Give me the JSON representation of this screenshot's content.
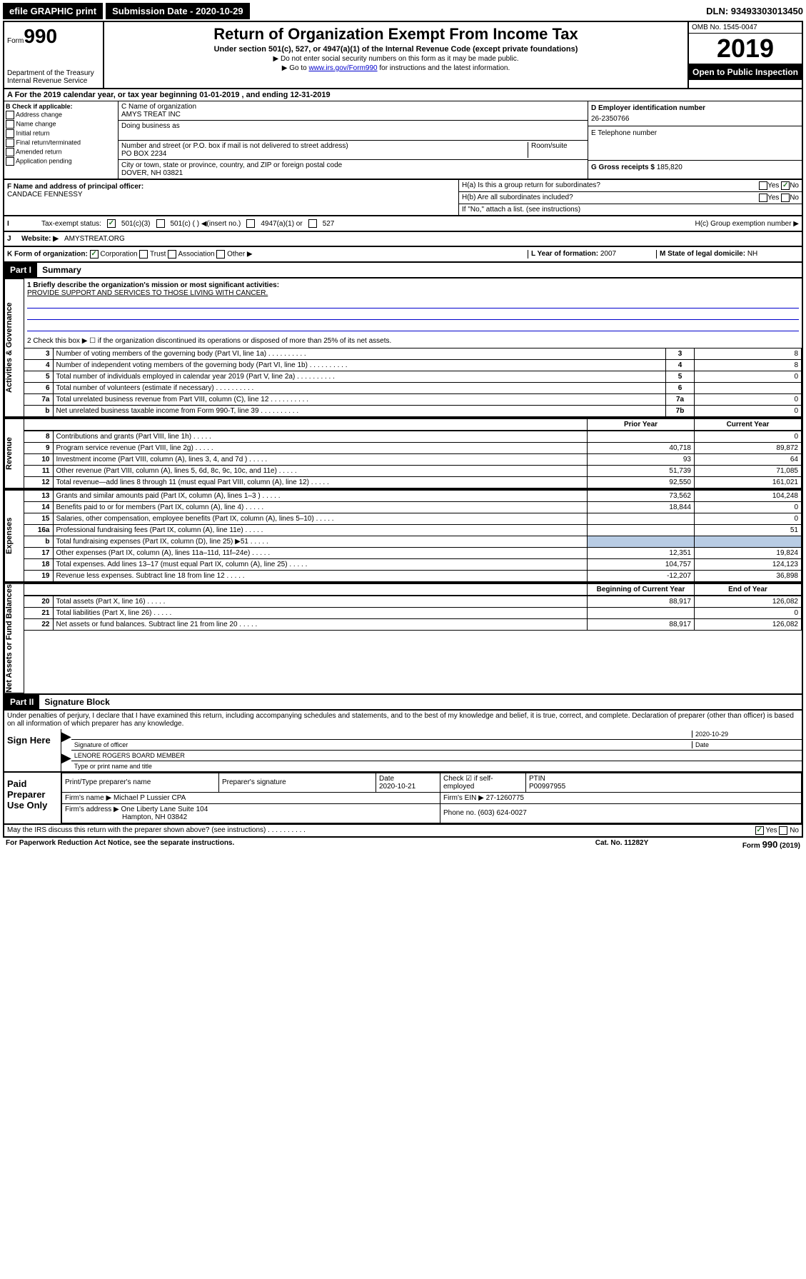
{
  "topbar": {
    "efile": "efile GRAPHIC print",
    "submission": "Submission Date - 2020-10-29",
    "dln": "DLN: 93493303013450"
  },
  "header": {
    "form_label": "Form",
    "form_number": "990",
    "dept": "Department of the Treasury",
    "irs": "Internal Revenue Service",
    "title": "Return of Organization Exempt From Income Tax",
    "subtitle": "Under section 501(c), 527, or 4947(a)(1) of the Internal Revenue Code (except private foundations)",
    "note1": "▶ Do not enter social security numbers on this form as it may be made public.",
    "note2_prefix": "▶ Go to ",
    "note2_link": "www.irs.gov/Form990",
    "note2_suffix": " for instructions and the latest information.",
    "omb": "OMB No. 1545-0047",
    "year": "2019",
    "open": "Open to Public Inspection"
  },
  "rowA": "For the 2019 calendar year, or tax year beginning 01-01-2019    , and ending 12-31-2019",
  "checkB": {
    "label": "B Check if applicable:",
    "items": [
      "Address change",
      "Name change",
      "Initial return",
      "Final return/terminated",
      "Amended return",
      "Application pending"
    ]
  },
  "colC": {
    "name_label": "C Name of organization",
    "name": "AMYS TREAT INC",
    "dba_label": "Doing business as",
    "addr_label": "Number and street (or P.O. box if mail is not delivered to street address)",
    "room_label": "Room/suite",
    "addr": "PO BOX 2234",
    "city_label": "City or town, state or province, country, and ZIP or foreign postal code",
    "city": "DOVER, NH  03821"
  },
  "colD": {
    "ein_label": "D Employer identification number",
    "ein": "26-2350766",
    "phone_label": "E Telephone number",
    "gross_label": "G Gross receipts $ ",
    "gross": "185,820"
  },
  "rowF": {
    "label": "F  Name and address of principal officer:",
    "name": "CANDACE FENNESSY"
  },
  "rowH": {
    "ha": "H(a)  Is this a group return for subordinates?",
    "hb": "H(b)  Are all subordinates included?",
    "hb_note": "If \"No,\" attach a list. (see instructions)",
    "hc": "H(c)  Group exemption number ▶",
    "yes": "Yes",
    "no": "No"
  },
  "rowI": {
    "label": "Tax-exempt status:",
    "opt1": "501(c)(3)",
    "opt2": "501(c) (  ) ◀(insert no.)",
    "opt3": "4947(a)(1) or",
    "opt4": "527"
  },
  "rowJ": {
    "label": "Website: ▶",
    "value": "AMYSTREAT.ORG"
  },
  "rowK": {
    "label": "K Form of organization:",
    "corp": "Corporation",
    "trust": "Trust",
    "assoc": "Association",
    "other": "Other ▶",
    "l_label": "L Year of formation: ",
    "l_val": "2007",
    "m_label": "M State of legal domicile: ",
    "m_val": "NH"
  },
  "part1": {
    "header": "Part I",
    "title": "Summary",
    "line1": "1  Briefly describe the organization's mission or most significant activities:",
    "mission": "PROVIDE SUPPORT AND SERVICES TO THOSE LIVING WITH CANCER.",
    "line2": "2   Check this box ▶ ☐  if the organization discontinued its operations or disposed of more than 25% of its net assets.",
    "side_gov": "Activities & Governance",
    "side_rev": "Revenue",
    "side_exp": "Expenses",
    "side_net": "Net Assets or Fund Balances",
    "prior_year": "Prior Year",
    "current_year": "Current Year",
    "begin_year": "Beginning of Current Year",
    "end_year": "End of Year",
    "rows_gov": [
      {
        "n": "3",
        "t": "Number of voting members of the governing body (Part VI, line 1a)",
        "ln": "3",
        "v": "8"
      },
      {
        "n": "4",
        "t": "Number of independent voting members of the governing body (Part VI, line 1b)",
        "ln": "4",
        "v": "8"
      },
      {
        "n": "5",
        "t": "Total number of individuals employed in calendar year 2019 (Part V, line 2a)",
        "ln": "5",
        "v": "0"
      },
      {
        "n": "6",
        "t": "Total number of volunteers (estimate if necessary)",
        "ln": "6",
        "v": ""
      },
      {
        "n": "7a",
        "t": "Total unrelated business revenue from Part VIII, column (C), line 12",
        "ln": "7a",
        "v": "0"
      },
      {
        "n": "b",
        "t": "Net unrelated business taxable income from Form 990-T, line 39",
        "ln": "7b",
        "v": "0"
      }
    ],
    "rows_rev": [
      {
        "n": "8",
        "t": "Contributions and grants (Part VIII, line 1h)",
        "p": "",
        "c": "0"
      },
      {
        "n": "9",
        "t": "Program service revenue (Part VIII, line 2g)",
        "p": "40,718",
        "c": "89,872"
      },
      {
        "n": "10",
        "t": "Investment income (Part VIII, column (A), lines 3, 4, and 7d )",
        "p": "93",
        "c": "64"
      },
      {
        "n": "11",
        "t": "Other revenue (Part VIII, column (A), lines 5, 6d, 8c, 9c, 10c, and 11e)",
        "p": "51,739",
        "c": "71,085"
      },
      {
        "n": "12",
        "t": "Total revenue—add lines 8 through 11 (must equal Part VIII, column (A), line 12)",
        "p": "92,550",
        "c": "161,021"
      }
    ],
    "rows_exp": [
      {
        "n": "13",
        "t": "Grants and similar amounts paid (Part IX, column (A), lines 1–3 )",
        "p": "73,562",
        "c": "104,248"
      },
      {
        "n": "14",
        "t": "Benefits paid to or for members (Part IX, column (A), line 4)",
        "p": "18,844",
        "c": "0"
      },
      {
        "n": "15",
        "t": "Salaries, other compensation, employee benefits (Part IX, column (A), lines 5–10)",
        "p": "",
        "c": "0"
      },
      {
        "n": "16a",
        "t": "Professional fundraising fees (Part IX, column (A), line 11e)",
        "p": "",
        "c": "51"
      },
      {
        "n": "b",
        "t": "Total fundraising expenses (Part IX, column (D), line 25) ▶51",
        "p": "shaded",
        "c": "shaded"
      },
      {
        "n": "17",
        "t": "Other expenses (Part IX, column (A), lines 11a–11d, 11f–24e)",
        "p": "12,351",
        "c": "19,824"
      },
      {
        "n": "18",
        "t": "Total expenses. Add lines 13–17 (must equal Part IX, column (A), line 25)",
        "p": "104,757",
        "c": "124,123"
      },
      {
        "n": "19",
        "t": "Revenue less expenses. Subtract line 18 from line 12",
        "p": "-12,207",
        "c": "36,898"
      }
    ],
    "rows_net": [
      {
        "n": "20",
        "t": "Total assets (Part X, line 16)",
        "p": "88,917",
        "c": "126,082"
      },
      {
        "n": "21",
        "t": "Total liabilities (Part X, line 26)",
        "p": "",
        "c": "0"
      },
      {
        "n": "22",
        "t": "Net assets or fund balances. Subtract line 21 from line 20",
        "p": "88,917",
        "c": "126,082"
      }
    ]
  },
  "part2": {
    "header": "Part II",
    "title": "Signature Block",
    "declaration": "Under penalties of perjury, I declare that I have examined this return, including accompanying schedules and statements, and to the best of my knowledge and belief, it is true, correct, and complete. Declaration of preparer (other than officer) is based on all information of which preparer has any knowledge.",
    "sign_here": "Sign Here",
    "sig_officer": "Signature of officer",
    "sig_date": "2020-10-29",
    "date_label": "Date",
    "officer_name": "LENORE ROGERS BOARD MEMBER",
    "type_name": "Type or print name and title",
    "paid": "Paid Preparer Use Only",
    "prep_name_label": "Print/Type preparer's name",
    "prep_sig_label": "Preparer's signature",
    "prep_date_label": "Date",
    "prep_date": "2020-10-21",
    "check_if": "Check ☑ if self-employed",
    "ptin_label": "PTIN",
    "ptin": "P00997955",
    "firm_name_label": "Firm's name   ▶",
    "firm_name": "Michael P Lussier CPA",
    "firm_ein_label": "Firm's EIN ▶",
    "firm_ein": "27-1260775",
    "firm_addr_label": "Firm's address ▶",
    "firm_addr": "One Liberty Lane Suite 104",
    "firm_city": "Hampton, NH  03842",
    "phone_label": "Phone no. ",
    "phone": "(603) 624-0027",
    "discuss": "May the IRS discuss this return with the preparer shown above? (see instructions)",
    "yes": "Yes",
    "no": "No"
  },
  "footer": {
    "paperwork": "For Paperwork Reduction Act Notice, see the separate instructions.",
    "cat": "Cat. No. 11282Y",
    "form": "Form 990 (2019)"
  }
}
